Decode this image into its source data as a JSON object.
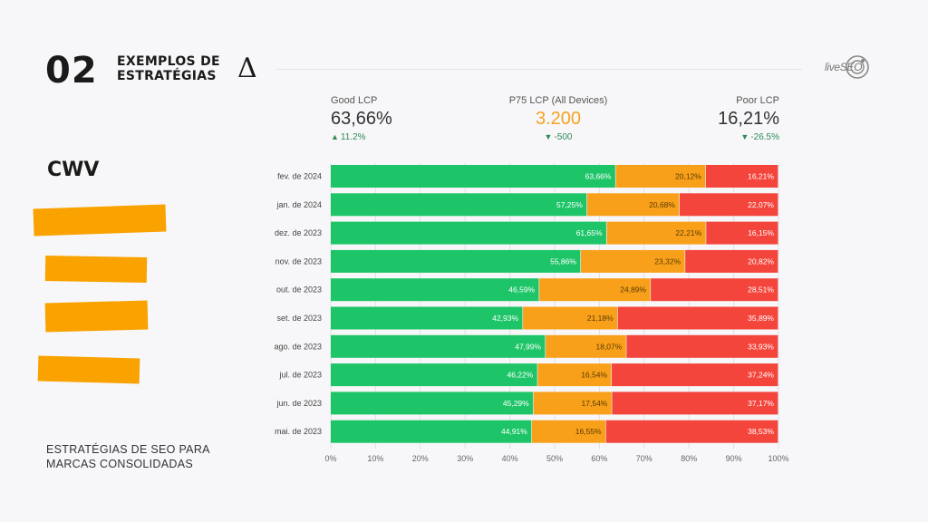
{
  "slide": {
    "number": "02",
    "title_line1": "EXEMPLOS DE",
    "title_line2": "ESTRATÉGIAS",
    "delta_symbol": "Δ",
    "brand": "liveSEO",
    "section_label": "CWV",
    "caption_line1": "ESTRATÉGIAS DE SEO PARA",
    "caption_line2": "MARCAS CONSOLIDADAS",
    "redaction_color": "#f9a200"
  },
  "metrics": {
    "good": {
      "label": "Good LCP",
      "value": "63,66%",
      "delta": "11.2%",
      "arrow": "up"
    },
    "p75": {
      "label": "P75 LCP (All Devices)",
      "value": "3.200",
      "delta": "-500",
      "arrow": "down"
    },
    "poor": {
      "label": "Poor LCP",
      "value": "16,21%",
      "delta": "-26.5%",
      "arrow": "down"
    }
  },
  "chart_data": {
    "type": "bar",
    "orientation": "horizontal",
    "stacked": true,
    "categories": [
      "fev. de 2024",
      "jan. de 2024",
      "dez. de 2023",
      "nov. de 2023",
      "out. de 2023",
      "set. de 2023",
      "ago. de 2023",
      "jul. de 2023",
      "jun. de 2023",
      "mai. de 2023"
    ],
    "series": [
      {
        "color": "#1ec568",
        "values": [
          63.66,
          57.25,
          61.65,
          55.86,
          46.59,
          42.93,
          47.99,
          46.22,
          45.29,
          44.91
        ],
        "labels": [
          "63,66%",
          "57,25%",
          "61,65%",
          "55,86%",
          "46,59%",
          "42,93%",
          "47,99%",
          "46,22%",
          "45,29%",
          "44,91%"
        ],
        "label_color": "#ffffff"
      },
      {
        "color": "#f9a01b",
        "values": [
          20.12,
          20.68,
          22.21,
          23.32,
          24.89,
          21.18,
          18.07,
          16.54,
          17.54,
          16.55
        ],
        "labels": [
          "20,12%",
          "20,68%",
          "22,21%",
          "23,32%",
          "24,89%",
          "21,18%",
          "18,07%",
          "16,54%",
          "17,54%",
          "16,55%"
        ],
        "label_color": "#5a3b00"
      },
      {
        "color": "#f4453c",
        "values": [
          16.21,
          22.07,
          16.15,
          20.82,
          28.51,
          35.89,
          33.93,
          37.24,
          37.17,
          38.53
        ],
        "labels": [
          "16,21%",
          "22,07%",
          "16,15%",
          "20,82%",
          "28,51%",
          "35,89%",
          "33,93%",
          "37,24%",
          "37,17%",
          "38,53%"
        ],
        "label_color": "#ffffff"
      }
    ],
    "xlim": [
      0,
      100
    ],
    "xticks": [
      "0%",
      "10%",
      "20%",
      "30%",
      "40%",
      "50%",
      "60%",
      "70%",
      "80%",
      "90%",
      "100%"
    ],
    "grid": true
  }
}
